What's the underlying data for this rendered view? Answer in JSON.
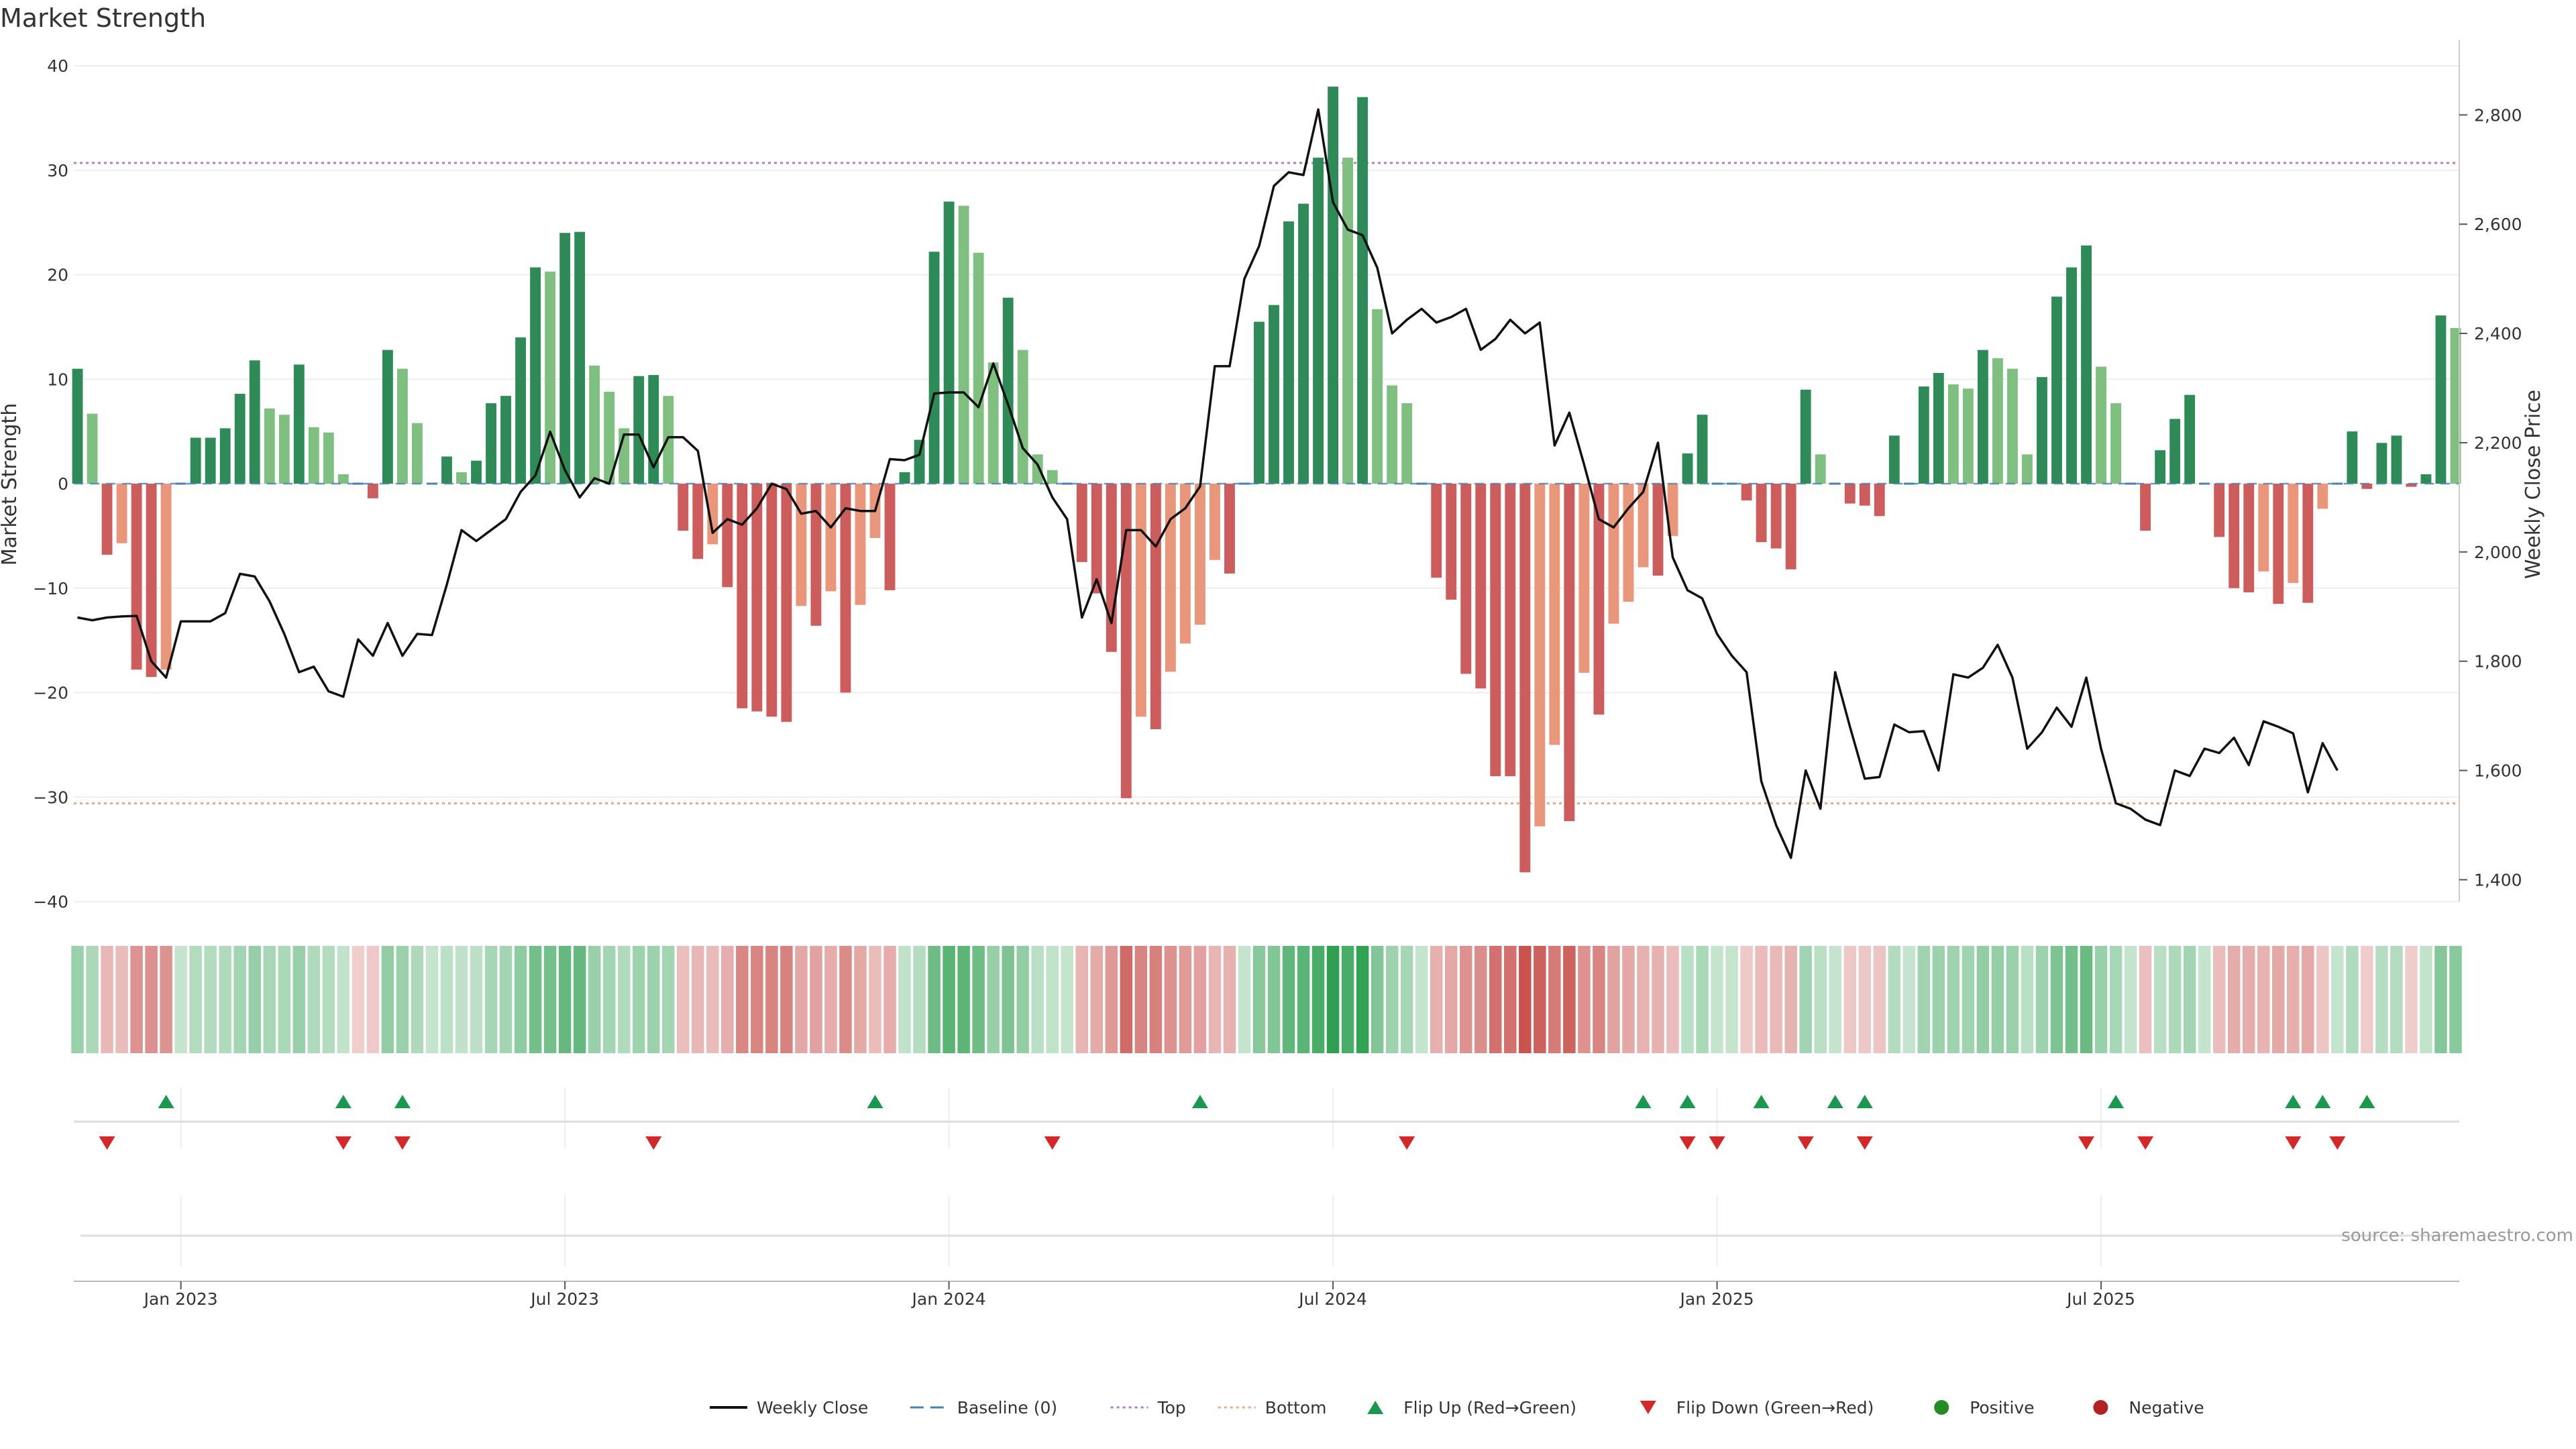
{
  "chart_data": {
    "type": "bar",
    "title": "Market Strength",
    "ylabel": "Market Strength",
    "y2label": "Weekly Close Price",
    "ylim": [
      -40,
      40
    ],
    "y2lim": [
      1360,
      2890
    ],
    "yticks": [
      "40",
      "30",
      "20",
      "10",
      "0",
      "−10",
      "−20",
      "−30",
      "−40"
    ],
    "ytick_values": [
      40,
      30,
      20,
      10,
      0,
      -10,
      -20,
      -30,
      -40
    ],
    "y2ticks": [
      "2,800",
      "2,600",
      "2,400",
      "2,200",
      "2,000",
      "1,800",
      "1,600",
      "1,400"
    ],
    "y2tick_values": [
      2800,
      2600,
      2400,
      2200,
      2000,
      1800,
      1600,
      1400
    ],
    "xticks": [
      "Jan 2023",
      "Jul 2023",
      "Jan 2024",
      "Jul 2024",
      "Jan 2025",
      "Jul 2025"
    ],
    "xtick_weeks": [
      7,
      33,
      59,
      85,
      111,
      137
    ],
    "top_line": 30.7,
    "bottom_line": -30.6,
    "source": "source: sharemaestro.com",
    "colors": {
      "strong_green": "#2e8b57",
      "light_green": "#7fbf7f",
      "strong_red": "#cd5c5c",
      "light_red": "#e9967a",
      "price": "#111111",
      "baseline": "#4682b4",
      "top": "#b07cc6",
      "bottom": "#f4a582",
      "flip_up": "#1a9850",
      "flip_down": "#d62728",
      "positive": "#228b22",
      "negative": "#b22222"
    },
    "strength": [
      11,
      6.7,
      -6.8,
      -5.7,
      -17.8,
      -18.5,
      -17.8,
      0,
      4.4,
      4.4,
      5.3,
      8.6,
      11.8,
      7.2,
      6.6,
      11.4,
      5.4,
      4.9,
      0.9,
      -0.1,
      -1.4,
      12.8,
      11,
      5.8,
      0,
      2.6,
      1.1,
      2.2,
      7.7,
      8.4,
      14,
      20.7,
      20.3,
      24,
      24.1,
      11.3,
      8.8,
      5.3,
      10.3,
      10.4,
      8.4,
      -4.5,
      -7.2,
      -5.8,
      -9.9,
      -21.5,
      -21.8,
      -22.3,
      -22.8,
      -11.7,
      -13.6,
      -10.3,
      -20,
      -11.6,
      -5.2,
      -10.2,
      1.1,
      4.2,
      22.2,
      27,
      26.6,
      22.1,
      11.6,
      17.8,
      12.8,
      2.8,
      1.3,
      0,
      -7.5,
      -10.5,
      -16.1,
      -30.1,
      -22.3,
      -23.5,
      -18,
      -15.3,
      -13.5,
      -7.3,
      -8.6,
      0,
      15.5,
      17.1,
      25.1,
      26.8,
      31.2,
      38,
      31.2,
      37,
      16.7,
      9.4,
      7.7,
      0,
      -9,
      -11.1,
      -18.2,
      -19.6,
      -28,
      -28,
      -37.2,
      -32.8,
      -25,
      -32.3,
      -18.1,
      -22.1,
      -13.4,
      -11.3,
      -8,
      -8.8,
      -5,
      2.9,
      6.6,
      0,
      0,
      -1.6,
      -5.6,
      -6.2,
      -8.2,
      9,
      2.8,
      0,
      -1.9,
      -2.1,
      -3.1,
      4.6,
      0,
      9.3,
      10.6,
      9.5,
      9.1,
      12.8,
      12,
      11,
      2.8,
      10.2,
      17.9,
      20.7,
      22.8,
      11.2,
      7.7,
      0,
      -4.5,
      3.2,
      6.2,
      8.5,
      0,
      -5.1,
      -10,
      -10.4,
      -8.4,
      -11.5,
      -9.5,
      -11.4,
      -2.4,
      0,
      5,
      -0.5,
      3.9,
      4.6,
      -0.3,
      0.9,
      16.1,
      14.9
    ],
    "price": [
      1880,
      1875,
      1880,
      1882,
      1883,
      1800,
      1770,
      1873,
      1873,
      1873,
      1888,
      1960,
      1955,
      1910,
      1850,
      1780,
      1790,
      1745,
      1735,
      1840,
      1810,
      1870,
      1810,
      1850,
      1848,
      1940,
      2040,
      2020,
      2040,
      2060,
      2110,
      2140,
      2220,
      2150,
      2100,
      2135,
      2125,
      2215,
      2215,
      2155,
      2210,
      2210,
      2185,
      2035,
      2060,
      2050,
      2080,
      2125,
      2115,
      2070,
      2075,
      2045,
      2080,
      2075,
      2075,
      2170,
      2168,
      2178,
      2290,
      2292,
      2292,
      2265,
      2345,
      2270,
      2190,
      2160,
      2100,
      2060,
      1880,
      1950,
      1870,
      2040,
      2040,
      2010,
      2060,
      2080,
      2120,
      2340,
      2340,
      2500,
      2560,
      2670,
      2695,
      2690,
      2810,
      2640,
      2590,
      2580,
      2520,
      2400,
      2425,
      2445,
      2420,
      2430,
      2445,
      2370,
      2390,
      2425,
      2400,
      2420,
      2195,
      2255,
      2160,
      2060,
      2045,
      2080,
      2110,
      2200,
      1990,
      1930,
      1915,
      1850,
      1810,
      1780,
      1580,
      1500,
      1440,
      1600,
      1530,
      1780,
      1680,
      1585,
      1588,
      1684,
      1670,
      1672,
      1600,
      1776,
      1770,
      1788,
      1830,
      1770,
      1640,
      1670,
      1715,
      1680,
      1770,
      1640,
      1540,
      1530,
      1510,
      1500,
      1600,
      1590,
      1640,
      1632,
      1660,
      1610,
      1690,
      1680,
      1668,
      1560,
      1650,
      1600
    ]
  },
  "panels": {
    "intensity_strip": "Market strength intensity by week",
    "flip_up_weeks": [
      6,
      18,
      22,
      54,
      76,
      106,
      109,
      114,
      119,
      121,
      138,
      150,
      152,
      155
    ],
    "flip_down_weeks": [
      2,
      18,
      22,
      39,
      66,
      90,
      109,
      111,
      117,
      121,
      136,
      140,
      150,
      153
    ]
  },
  "legend": [
    {
      "label": "Weekly Close",
      "kind": "line",
      "color": "#111111"
    },
    {
      "label": "Baseline (0)",
      "kind": "dash",
      "color": "#4682b4"
    },
    {
      "label": "Top",
      "kind": "dot",
      "color": "#b07cc6"
    },
    {
      "label": "Bottom",
      "kind": "dot",
      "color": "#f4a582"
    },
    {
      "label": "Flip Up (Red→Green)",
      "kind": "up",
      "color": "#1a9850"
    },
    {
      "label": "Flip Down (Green→Red)",
      "kind": "down",
      "color": "#d62728"
    },
    {
      "label": "Positive",
      "kind": "circle",
      "color": "#228b22"
    },
    {
      "label": "Negative",
      "kind": "circle",
      "color": "#b22222"
    }
  ]
}
